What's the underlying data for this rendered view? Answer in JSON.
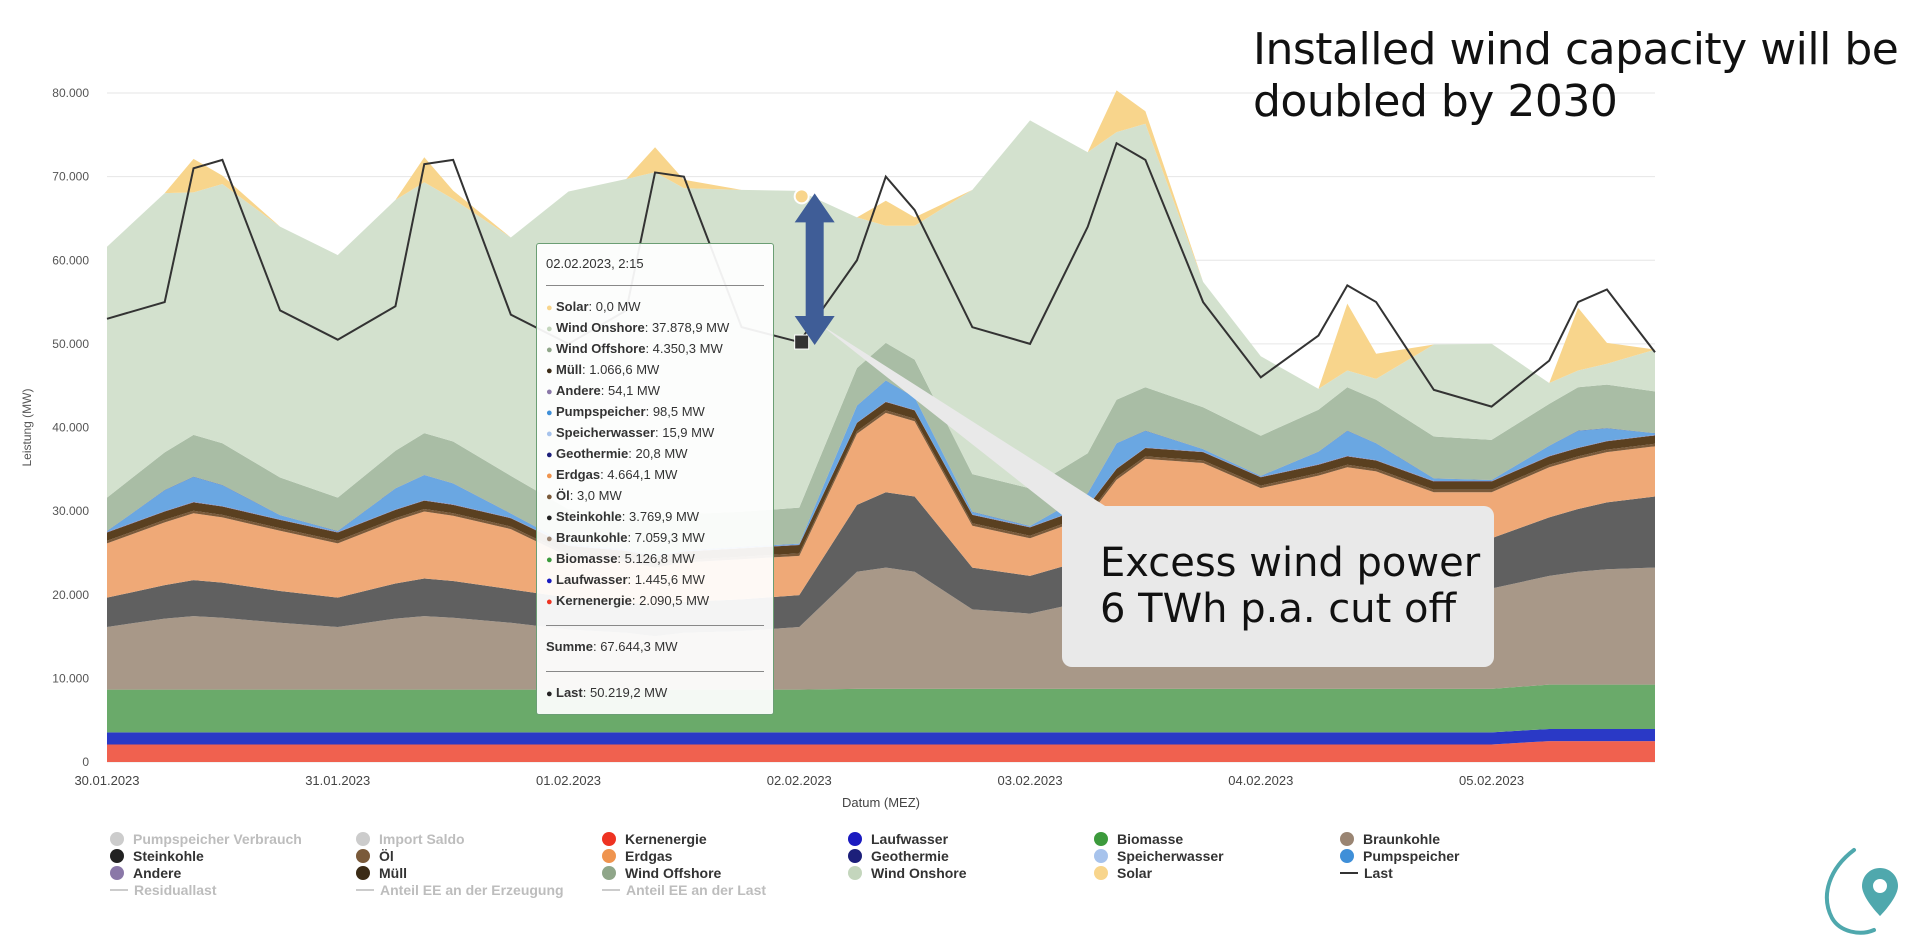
{
  "headline": {
    "line1": "Installed wind capacity will be",
    "line2": "doubled by 2030"
  },
  "callout": {
    "line1": "Excess wind power",
    "line2": "6 TWh p.a. cut off"
  },
  "chart_data": {
    "type": "area",
    "stacking": "normal",
    "ylabel": "Leistung (MW)",
    "xlabel": "Datum (MEZ)",
    "ylim": [
      0,
      80000
    ],
    "y_ticks": [
      0,
      10000,
      20000,
      30000,
      40000,
      50000,
      60000,
      70000,
      80000
    ],
    "y_tick_labels": [
      "0",
      "10.000",
      "20.000",
      "30.000",
      "40.000",
      "50.000",
      "60.000",
      "70.000",
      "80.000"
    ],
    "x_unit": "hours since 30.01.2023 00:00",
    "xlim": [
      0,
      161
    ],
    "x_ticks": [
      0,
      24,
      48,
      72,
      96,
      120,
      144
    ],
    "x_tick_labels": [
      "30.01.2023",
      "31.01.2023",
      "01.02.2023",
      "02.02.2023",
      "03.02.2023",
      "04.02.2023",
      "05.02.2023"
    ],
    "x": [
      0,
      6,
      9,
      12,
      18,
      24,
      30,
      33,
      36,
      42,
      48,
      54,
      57,
      60,
      66,
      72,
      78,
      81,
      84,
      90,
      96,
      102,
      105,
      108,
      114,
      120,
      126,
      129,
      132,
      138,
      144,
      150,
      153,
      156,
      161
    ],
    "series": [
      {
        "name": "Kernenergie",
        "color": "#f0614f",
        "values": [
          2100,
          2100,
          2100,
          2100,
          2100,
          2100,
          2100,
          2100,
          2100,
          2100,
          2100,
          2100,
          2100,
          2100,
          2100,
          2100,
          2100,
          2100,
          2100,
          2100,
          2100,
          2100,
          2100,
          2100,
          2100,
          2100,
          2100,
          2100,
          2100,
          2100,
          2100,
          2500,
          2500,
          2500,
          2500
        ]
      },
      {
        "name": "Laufwasser",
        "color": "#2a39c6",
        "values": [
          1450,
          1450,
          1450,
          1450,
          1450,
          1450,
          1450,
          1450,
          1450,
          1450,
          1450,
          1450,
          1450,
          1450,
          1450,
          1450,
          1450,
          1450,
          1450,
          1450,
          1450,
          1450,
          1450,
          1450,
          1450,
          1450,
          1450,
          1450,
          1450,
          1450,
          1450,
          1450,
          1450,
          1450,
          1450
        ]
      },
      {
        "name": "Biomasse",
        "color": "#6aaa6a",
        "values": [
          5100,
          5100,
          5100,
          5100,
          5100,
          5100,
          5100,
          5100,
          5100,
          5100,
          5100,
          5100,
          5100,
          5100,
          5100,
          5100,
          5200,
          5200,
          5200,
          5200,
          5200,
          5200,
          5200,
          5200,
          5200,
          5200,
          5200,
          5200,
          5200,
          5200,
          5200,
          5300,
          5300,
          5300,
          5300
        ]
      },
      {
        "name": "Braunkohle",
        "color": "#a89888",
        "values": [
          7500,
          8500,
          8800,
          8600,
          8000,
          7500,
          8500,
          8800,
          8600,
          8000,
          7200,
          6800,
          6400,
          6800,
          7000,
          7500,
          14000,
          14500,
          14000,
          9500,
          9000,
          10500,
          12500,
          13500,
          13000,
          12500,
          13000,
          13200,
          13000,
          12000,
          12000,
          13000,
          13500,
          13800,
          14000
        ]
      },
      {
        "name": "Steinkohle",
        "color": "#606060",
        "values": [
          3500,
          4000,
          4300,
          4200,
          3800,
          3500,
          4200,
          4500,
          4400,
          4000,
          3800,
          3700,
          3600,
          3700,
          3800,
          3800,
          8000,
          9000,
          9000,
          5000,
          4500,
          5000,
          6500,
          7500,
          7500,
          6000,
          6500,
          6800,
          6500,
          6000,
          6000,
          7000,
          7500,
          8000,
          8500
        ]
      },
      {
        "name": "Erdgas",
        "color": "#efa977",
        "values": [
          6500,
          7500,
          8000,
          7800,
          7200,
          6500,
          7500,
          8000,
          7800,
          7200,
          4900,
          4800,
          4600,
          4700,
          4800,
          4700,
          8500,
          9500,
          9000,
          5000,
          4500,
          5000,
          6000,
          6500,
          6500,
          5500,
          6000,
          6500,
          6500,
          5500,
          5500,
          6000,
          6000,
          6000,
          6000
        ]
      },
      {
        "name": "Öl",
        "color": "#7a5a3a",
        "values": [
          300,
          300,
          300,
          300,
          300,
          300,
          300,
          300,
          300,
          300,
          300,
          300,
          300,
          300,
          300,
          300,
          300,
          300,
          300,
          300,
          300,
          300,
          300,
          300,
          300,
          300,
          300,
          300,
          300,
          300,
          300,
          300,
          300,
          300,
          300
        ]
      },
      {
        "name": "Müll",
        "color": "#5a4020",
        "values": [
          1000,
          1000,
          1000,
          1000,
          1000,
          1000,
          1000,
          1000,
          1000,
          1000,
          1000,
          1000,
          1000,
          1000,
          1000,
          1000,
          1000,
          1000,
          1000,
          1000,
          1000,
          1000,
          1000,
          1000,
          1000,
          1000,
          1000,
          1000,
          1000,
          1000,
          1000,
          1000,
          1000,
          1000,
          1000
        ]
      },
      {
        "name": "Andere",
        "color": "#8a78a8",
        "values": [
          50,
          50,
          50,
          50,
          50,
          50,
          50,
          50,
          50,
          50,
          50,
          50,
          50,
          50,
          50,
          50,
          50,
          50,
          50,
          50,
          50,
          50,
          50,
          50,
          50,
          50,
          50,
          50,
          50,
          50,
          50,
          50,
          50,
          50,
          50
        ]
      },
      {
        "name": "Speicherwasser",
        "color": "#a7c3ec",
        "values": [
          0,
          0,
          0,
          0,
          0,
          0,
          0,
          0,
          0,
          0,
          0,
          0,
          0,
          0,
          0,
          0,
          0,
          0,
          0,
          0,
          0,
          0,
          0,
          0,
          0,
          0,
          0,
          0,
          0,
          0,
          0,
          0,
          0,
          0,
          0
        ]
      },
      {
        "name": "Pumpspeicher",
        "color": "#6aa7e2",
        "values": [
          100,
          2500,
          3000,
          2500,
          500,
          100,
          2500,
          3000,
          2500,
          500,
          100,
          100,
          100,
          100,
          100,
          100,
          2000,
          2500,
          1500,
          300,
          100,
          1500,
          3000,
          2000,
          300,
          100,
          1500,
          3000,
          2000,
          300,
          100,
          1200,
          2000,
          1500,
          200
        ]
      },
      {
        "name": "Geothermie",
        "color": "#2a3a8a",
        "values": [
          20,
          20,
          20,
          20,
          20,
          20,
          20,
          20,
          20,
          20,
          20,
          20,
          20,
          20,
          20,
          20,
          20,
          20,
          20,
          20,
          20,
          20,
          20,
          20,
          20,
          20,
          20,
          20,
          20,
          20,
          20,
          20,
          20,
          20,
          20
        ]
      },
      {
        "name": "Wind Offshore",
        "color": "#a9bda5",
        "values": [
          4000,
          4500,
          5000,
          5000,
          4500,
          4000,
          4500,
          5000,
          5000,
          4500,
          4200,
          4300,
          4300,
          4300,
          4200,
          4300,
          4500,
          4500,
          4500,
          4500,
          4500,
          4800,
          5200,
          5200,
          5000,
          4800,
          5000,
          5200,
          5200,
          5000,
          4800,
          5000,
          5200,
          5200,
          5000
        ]
      },
      {
        "name": "Wind Onshore",
        "color": "#d3e1ce",
        "values": [
          30000,
          31000,
          29000,
          31000,
          30000,
          29000,
          30000,
          30000,
          29000,
          28500,
          38000,
          40000,
          41500,
          39000,
          38500,
          37879,
          18000,
          14000,
          16000,
          34000,
          44000,
          36000,
          32000,
          31500,
          15000,
          9500,
          2500,
          2000,
          2500,
          11000,
          11500,
          2500,
          2000,
          2500,
          5000
        ]
      },
      {
        "name": "Solar",
        "color": "#f8d58c",
        "values": [
          0,
          0,
          4000,
          1000,
          0,
          0,
          0,
          3000,
          1000,
          0,
          0,
          0,
          3000,
          1000,
          0,
          0,
          0,
          3000,
          1000,
          0,
          0,
          0,
          5000,
          1500,
          0,
          0,
          0,
          8000,
          3000,
          0,
          0,
          0,
          7500,
          2500,
          0
        ]
      }
    ],
    "load": {
      "name": "Last",
      "color": "#333333",
      "values": [
        53000,
        55000,
        71000,
        72000,
        54000,
        50500,
        54500,
        71500,
        72000,
        53500,
        50000,
        54000,
        70500,
        70000,
        52000,
        50219,
        60000,
        70000,
        66000,
        52000,
        50000,
        64000,
        74000,
        72000,
        55000,
        46000,
        51000,
        57000,
        55000,
        44500,
        42500,
        48000,
        55000,
        56500,
        49000
      ]
    },
    "arrow_annotation": {
      "from": 50219,
      "to": 67644,
      "label_x": 72.25
    }
  },
  "tooltip": {
    "date": "02.02.2023, 2:15",
    "rows": [
      {
        "name": "Solar",
        "value": ": 0,0 MW",
        "color": "#f8d58c"
      },
      {
        "name": "Wind Onshore",
        "value": ": 37.878,9 MW",
        "color": "#c4d6bd"
      },
      {
        "name": "Wind Offshore",
        "value": ": 4.350,3 MW",
        "color": "#8fa689"
      },
      {
        "name": "Müll",
        "value": ": 1.066,6 MW",
        "color": "#3b2b16"
      },
      {
        "name": "Andere",
        "value": ": 54,1 MW",
        "color": "#8a78a8"
      },
      {
        "name": "Pumpspeicher",
        "value": ": 98,5 MW",
        "color": "#3f8fd8"
      },
      {
        "name": "Speicherwasser",
        "value": ": 15,9 MW",
        "color": "#a7c3ec"
      },
      {
        "name": "Geothermie",
        "value": ": 20,8 MW",
        "color": "#1c1f7a"
      },
      {
        "name": "Erdgas",
        "value": ": 4.664,1 MW",
        "color": "#ef944f"
      },
      {
        "name": "Öl",
        "value": ": 3,0 MW",
        "color": "#7a5a3a"
      },
      {
        "name": "Steinkohle",
        "value": ": 3.769,9 MW",
        "color": "#222222"
      },
      {
        "name": "Braunkohle",
        "value": ": 7.059,3 MW",
        "color": "#9a8573"
      },
      {
        "name": "Biomasse",
        "value": ": 5.126,8 MW",
        "color": "#3c9a3c"
      },
      {
        "name": "Laufwasser",
        "value": ": 1.445,6 MW",
        "color": "#1a1ac0"
      },
      {
        "name": "Kernenergie",
        "value": ": 2.090,5 MW",
        "color": "#ee3322"
      }
    ],
    "sum_label": "Summe",
    "sum_value": ": 67.644,3 MW",
    "load_label": "Last",
    "load_value": ": 50.219,2 MW",
    "load_color": "#222222"
  },
  "legend": {
    "items": [
      {
        "name": "Pumpspeicher Verbrauch",
        "color": "#cccccc",
        "kind": "dot",
        "enabled": false
      },
      {
        "name": "Import Saldo",
        "color": "#cccccc",
        "kind": "dot",
        "enabled": false
      },
      {
        "name": "Kernenergie",
        "color": "#ee3322",
        "kind": "dot",
        "enabled": true
      },
      {
        "name": "Laufwasser",
        "color": "#1a1ac0",
        "kind": "dot",
        "enabled": true
      },
      {
        "name": "Biomasse",
        "color": "#3c9a3c",
        "kind": "dot",
        "enabled": true
      },
      {
        "name": "Braunkohle",
        "color": "#9a8573",
        "kind": "dot",
        "enabled": true
      },
      {
        "name": "Steinkohle",
        "color": "#222222",
        "kind": "dot",
        "enabled": true
      },
      {
        "name": "Öl",
        "color": "#7a5a3a",
        "kind": "dot",
        "enabled": true
      },
      {
        "name": "Erdgas",
        "color": "#ef944f",
        "kind": "dot",
        "enabled": true
      },
      {
        "name": "Geothermie",
        "color": "#1c1f7a",
        "kind": "dot",
        "enabled": true
      },
      {
        "name": "Speicherwasser",
        "color": "#a7c3ec",
        "kind": "dot",
        "enabled": true
      },
      {
        "name": "Pumpspeicher",
        "color": "#3f8fd8",
        "kind": "dot",
        "enabled": true
      },
      {
        "name": "Andere",
        "color": "#8a78a8",
        "kind": "dot",
        "enabled": true
      },
      {
        "name": "Müll",
        "color": "#3b2b16",
        "kind": "dot",
        "enabled": true
      },
      {
        "name": "Wind Offshore",
        "color": "#8fa689",
        "kind": "dot",
        "enabled": true
      },
      {
        "name": "Wind Onshore",
        "color": "#c4d6bd",
        "kind": "dot",
        "enabled": true
      },
      {
        "name": "Solar",
        "color": "#f8d58c",
        "kind": "dot",
        "enabled": true
      },
      {
        "name": "Last",
        "color": "#333333",
        "kind": "line",
        "enabled": true
      },
      {
        "name": "Residuallast",
        "color": "#cccccc",
        "kind": "line",
        "enabled": false
      },
      {
        "name": "Anteil EE an der Erzeugung",
        "color": "#cccccc",
        "kind": "line",
        "enabled": false
      },
      {
        "name": "Anteil EE an der Last",
        "color": "#cccccc",
        "kind": "line",
        "enabled": false
      }
    ]
  },
  "logo": {
    "name": "location-pin-logo",
    "color": "#4fa8ad"
  }
}
